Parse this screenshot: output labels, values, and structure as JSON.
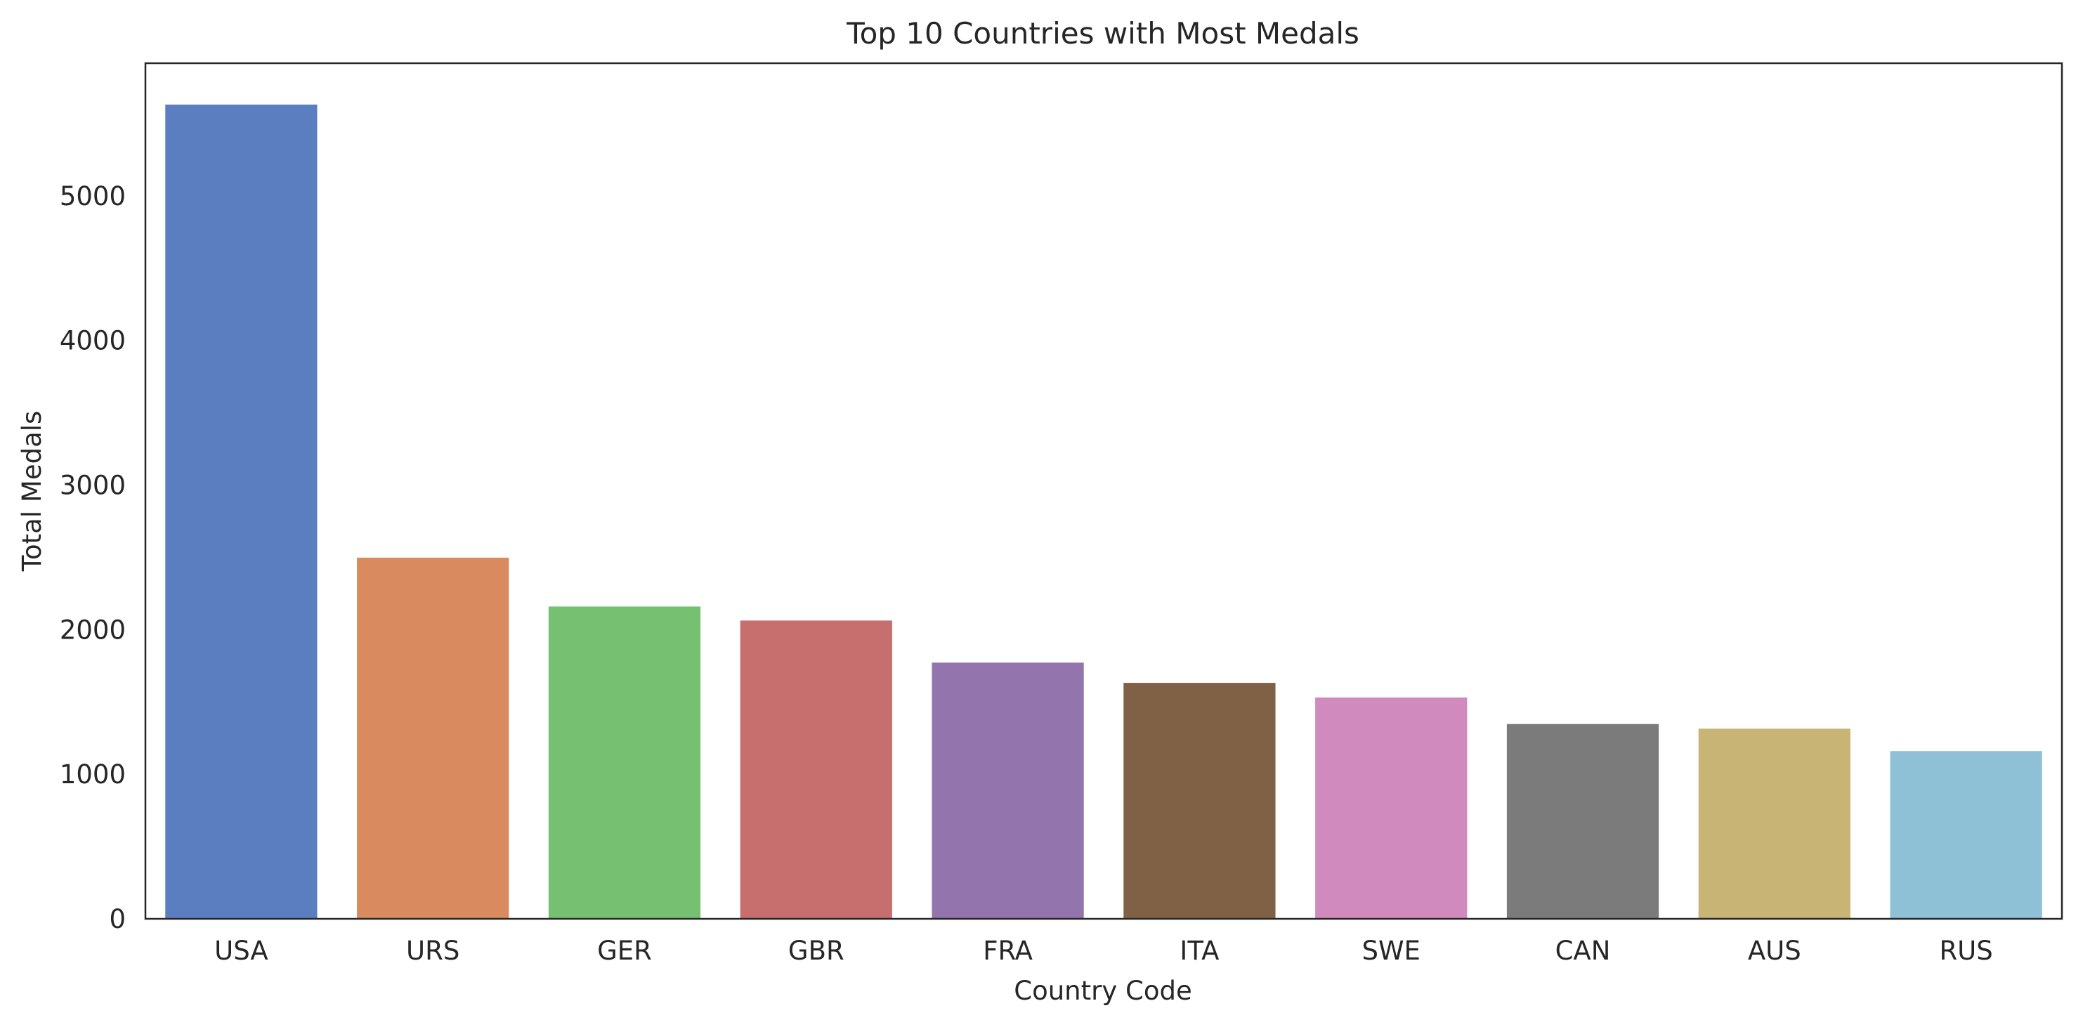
{
  "chart_data": {
    "type": "bar",
    "title": "Top 10 Countries with Most Medals",
    "xlabel": "Country Code",
    "ylabel": "Total Medals",
    "categories": [
      "USA",
      "URS",
      "GER",
      "GBR",
      "FRA",
      "ITA",
      "SWE",
      "CAN",
      "AUS",
      "RUS"
    ],
    "values": [
      5637,
      2503,
      2165,
      2068,
      1777,
      1637,
      1536,
      1352,
      1320,
      1165
    ],
    "colors": [
      "#5b7ec1",
      "#d98b5f",
      "#76c071",
      "#c76e6e",
      "#9474ac",
      "#806146",
      "#d18abd",
      "#7b7b7b",
      "#c8b474",
      "#8fc1d6"
    ],
    "yticks": [
      0,
      1000,
      2000,
      3000,
      4000,
      5000
    ],
    "ylim": [
      0,
      5918
    ],
    "grid": false,
    "legend": "none"
  }
}
